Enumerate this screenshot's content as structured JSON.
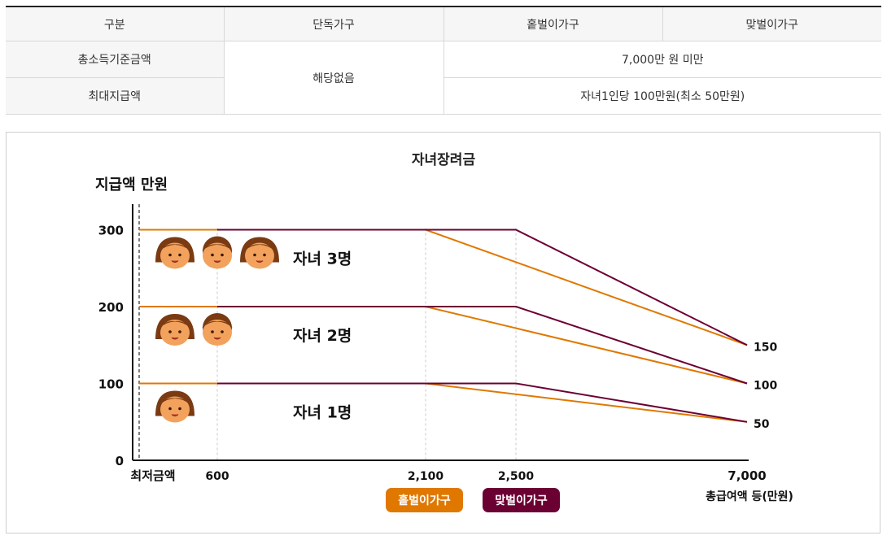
{
  "table": {
    "headers": [
      "구분",
      "단독가구",
      "홑벌이가구",
      "맞벌이가구"
    ],
    "rows": [
      {
        "label": "총소득기준금액",
        "single": "해당없음",
        "value": "7,000만 원 미만"
      },
      {
        "label": "최대지급액",
        "value": "자녀1인당 100만원(최소 50만원)"
      }
    ]
  },
  "chart_data": {
    "type": "line",
    "title": "자녀장려금",
    "ylabel": "지급액 만원",
    "xlabel": "총급여액 등(만원)",
    "x_ticks": [
      "최저금액",
      "600",
      "2,100",
      "2,500",
      "7,000"
    ],
    "y_ticks": [
      "0",
      "100",
      "200",
      "300"
    ],
    "right_labels": [
      "150",
      "100",
      "50"
    ],
    "ylim": [
      0,
      330
    ],
    "series": [
      {
        "name": "홑벌이가구",
        "color": "#e07800",
        "lines": [
          {
            "label": "자녀 1명",
            "points": [
              [
                0,
                100
              ],
              [
                2100,
                100
              ],
              [
                7000,
                50
              ]
            ]
          },
          {
            "label": "자녀 2명",
            "points": [
              [
                0,
                200
              ],
              [
                2100,
                200
              ],
              [
                7000,
                100
              ]
            ]
          },
          {
            "label": "자녀 3명",
            "points": [
              [
                0,
                300
              ],
              [
                2100,
                300
              ],
              [
                7000,
                150
              ]
            ]
          }
        ]
      },
      {
        "name": "맞벌이가구",
        "color": "#6b0033",
        "lines": [
          {
            "label": "자녀 1명",
            "points": [
              [
                600,
                100
              ],
              [
                2500,
                100
              ],
              [
                7000,
                50
              ]
            ]
          },
          {
            "label": "자녀 2명",
            "points": [
              [
                600,
                200
              ],
              [
                2500,
                200
              ],
              [
                7000,
                100
              ]
            ]
          },
          {
            "label": "자녀 3명",
            "points": [
              [
                600,
                300
              ],
              [
                2500,
                300
              ],
              [
                7000,
                150
              ]
            ]
          }
        ]
      }
    ],
    "group_labels": [
      "자녀 3명",
      "자녀 2명",
      "자녀 1명"
    ],
    "legend": [
      "홑벌이가구",
      "맞벌이가구"
    ]
  }
}
